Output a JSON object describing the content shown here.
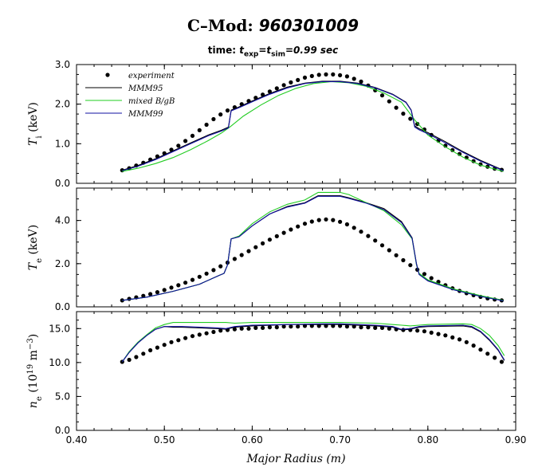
{
  "title": {
    "machine": "C–Mod:",
    "shot": "960301009"
  },
  "subtitle": {
    "prefix": "time:",
    "t": "t",
    "exp": "exp",
    "eq": "=",
    "sim": "sim",
    "value": "=0.99 sec"
  },
  "xlabel": "Major Radius (m)",
  "legend": [
    "experiment",
    "MMM95",
    "mixed B/gB",
    "MMM99"
  ],
  "colors": {
    "experiment": "#000000",
    "MMM95": "#000000",
    "mixed B/gB": "#22cc22",
    "MMM99": "#1010a0"
  },
  "chart_data": [
    {
      "type": "line",
      "ylabel": "T_i (keV)",
      "ylim": [
        0,
        3.0
      ],
      "yticks": [
        "0.0",
        "1.0",
        "2.0",
        "3.0"
      ],
      "xlim": [
        0.4,
        0.9
      ],
      "xticks": [
        "0.40",
        "0.50",
        "0.60",
        "0.70",
        "0.80",
        "0.90"
      ],
      "series": [
        {
          "name": "experiment",
          "style": "markers",
          "x": [
            0.452,
            0.46,
            0.468,
            0.476,
            0.484,
            0.492,
            0.5,
            0.508,
            0.516,
            0.524,
            0.532,
            0.54,
            0.548,
            0.556,
            0.564,
            0.572,
            0.58,
            0.588,
            0.596,
            0.604,
            0.612,
            0.62,
            0.628,
            0.636,
            0.644,
            0.652,
            0.66,
            0.668,
            0.676,
            0.684,
            0.692,
            0.7,
            0.708,
            0.716,
            0.724,
            0.732,
            0.74,
            0.748,
            0.756,
            0.764,
            0.772,
            0.78,
            0.788,
            0.796,
            0.804,
            0.812,
            0.82,
            0.828,
            0.836,
            0.844,
            0.852,
            0.86,
            0.868,
            0.876,
            0.884
          ],
          "y": [
            0.33,
            0.38,
            0.45,
            0.52,
            0.6,
            0.68,
            0.76,
            0.85,
            0.95,
            1.07,
            1.2,
            1.34,
            1.48,
            1.62,
            1.74,
            1.84,
            1.92,
            2.0,
            2.08,
            2.16,
            2.24,
            2.32,
            2.4,
            2.48,
            2.55,
            2.61,
            2.67,
            2.71,
            2.74,
            2.75,
            2.75,
            2.73,
            2.7,
            2.64,
            2.57,
            2.47,
            2.35,
            2.22,
            2.07,
            1.91,
            1.76,
            1.63,
            1.5,
            1.36,
            1.22,
            1.08,
            0.95,
            0.84,
            0.74,
            0.65,
            0.56,
            0.48,
            0.42,
            0.37,
            0.34
          ]
        },
        {
          "name": "MMM95",
          "style": "line",
          "x": [
            0.452,
            0.47,
            0.49,
            0.51,
            0.53,
            0.55,
            0.565,
            0.573,
            0.576,
            0.585,
            0.6,
            0.62,
            0.64,
            0.66,
            0.68,
            0.7,
            0.72,
            0.74,
            0.76,
            0.775,
            0.781,
            0.785,
            0.79,
            0.8,
            0.82,
            0.84,
            0.86,
            0.886
          ],
          "y": [
            0.33,
            0.45,
            0.62,
            0.82,
            1.02,
            1.22,
            1.34,
            1.42,
            1.85,
            1.93,
            2.08,
            2.27,
            2.43,
            2.53,
            2.58,
            2.58,
            2.53,
            2.42,
            2.25,
            2.05,
            1.85,
            1.45,
            1.38,
            1.28,
            1.05,
            0.8,
            0.58,
            0.33
          ]
        },
        {
          "name": "mixed B/gB",
          "style": "line",
          "x": [
            0.452,
            0.47,
            0.49,
            0.51,
            0.53,
            0.55,
            0.565,
            0.575,
            0.59,
            0.61,
            0.63,
            0.65,
            0.67,
            0.69,
            0.71,
            0.73,
            0.75,
            0.77,
            0.785,
            0.8,
            0.82,
            0.84,
            0.86,
            0.886
          ],
          "y": [
            0.3,
            0.38,
            0.5,
            0.65,
            0.85,
            1.08,
            1.27,
            1.43,
            1.7,
            1.98,
            2.22,
            2.4,
            2.52,
            2.57,
            2.54,
            2.45,
            2.28,
            2.05,
            1.6,
            1.22,
            0.92,
            0.66,
            0.46,
            0.3
          ]
        },
        {
          "name": "MMM99",
          "style": "line",
          "x": [
            0.452,
            0.47,
            0.49,
            0.51,
            0.53,
            0.55,
            0.565,
            0.573,
            0.576,
            0.585,
            0.6,
            0.62,
            0.64,
            0.66,
            0.68,
            0.7,
            0.72,
            0.74,
            0.76,
            0.775,
            0.781,
            0.785,
            0.79,
            0.8,
            0.82,
            0.84,
            0.86,
            0.886
          ],
          "y": [
            0.32,
            0.43,
            0.6,
            0.8,
            1.0,
            1.2,
            1.32,
            1.4,
            1.83,
            1.91,
            2.06,
            2.25,
            2.41,
            2.52,
            2.57,
            2.57,
            2.52,
            2.41,
            2.24,
            2.04,
            1.84,
            1.42,
            1.35,
            1.25,
            1.02,
            0.78,
            0.56,
            0.32
          ]
        }
      ]
    },
    {
      "type": "line",
      "ylabel": "T_e (keV)",
      "ylim": [
        0,
        5.5
      ],
      "yticks": [
        "0.0",
        "2.0",
        "4.0"
      ],
      "xlim": [
        0.4,
        0.9
      ],
      "xticks": [
        "0.40",
        "0.50",
        "0.60",
        "0.70",
        "0.80",
        "0.90"
      ],
      "series": [
        {
          "name": "experiment",
          "style": "markers",
          "x": [
            0.452,
            0.46,
            0.468,
            0.476,
            0.484,
            0.492,
            0.5,
            0.508,
            0.516,
            0.524,
            0.532,
            0.54,
            0.548,
            0.556,
            0.564,
            0.572,
            0.58,
            0.588,
            0.596,
            0.604,
            0.612,
            0.62,
            0.628,
            0.636,
            0.644,
            0.652,
            0.66,
            0.668,
            0.676,
            0.684,
            0.692,
            0.7,
            0.708,
            0.716,
            0.724,
            0.732,
            0.74,
            0.748,
            0.756,
            0.764,
            0.772,
            0.78,
            0.788,
            0.796,
            0.804,
            0.812,
            0.82,
            0.828,
            0.836,
            0.844,
            0.852,
            0.86,
            0.868,
            0.876,
            0.884
          ],
          "y": [
            0.3,
            0.37,
            0.44,
            0.51,
            0.59,
            0.68,
            0.78,
            0.89,
            1.0,
            1.12,
            1.25,
            1.39,
            1.54,
            1.7,
            1.88,
            2.05,
            2.22,
            2.4,
            2.58,
            2.76,
            2.94,
            3.11,
            3.27,
            3.43,
            3.58,
            3.72,
            3.85,
            3.95,
            4.02,
            4.05,
            4.02,
            3.94,
            3.82,
            3.66,
            3.48,
            3.28,
            3.07,
            2.85,
            2.62,
            2.39,
            2.16,
            1.93,
            1.72,
            1.52,
            1.33,
            1.16,
            1.0,
            0.86,
            0.74,
            0.63,
            0.54,
            0.46,
            0.39,
            0.34,
            0.3
          ]
        },
        {
          "name": "MMM95",
          "style": "line",
          "x": [
            0.452,
            0.48,
            0.51,
            0.54,
            0.562,
            0.568,
            0.572,
            0.576,
            0.585,
            0.6,
            0.62,
            0.64,
            0.66,
            0.675,
            0.7,
            0.71,
            0.73,
            0.75,
            0.77,
            0.782,
            0.787,
            0.79,
            0.8,
            0.83,
            0.86,
            0.886
          ],
          "y": [
            0.3,
            0.45,
            0.72,
            1.05,
            1.45,
            1.55,
            1.95,
            3.15,
            3.25,
            3.75,
            4.3,
            4.65,
            4.82,
            5.15,
            5.15,
            5.05,
            4.82,
            4.55,
            3.95,
            3.2,
            2.0,
            1.52,
            1.22,
            0.8,
            0.5,
            0.3
          ]
        },
        {
          "name": "mixed B/gB",
          "style": "line",
          "x": [
            0.452,
            0.48,
            0.51,
            0.54,
            0.562,
            0.568,
            0.572,
            0.576,
            0.585,
            0.6,
            0.62,
            0.64,
            0.66,
            0.675,
            0.7,
            0.71,
            0.73,
            0.75,
            0.77,
            0.782,
            0.787,
            0.79,
            0.8,
            0.83,
            0.86,
            0.886
          ],
          "y": [
            0.3,
            0.45,
            0.72,
            1.05,
            1.45,
            1.55,
            1.95,
            3.15,
            3.28,
            3.85,
            4.4,
            4.75,
            4.95,
            5.3,
            5.3,
            5.2,
            4.82,
            4.45,
            3.8,
            3.15,
            1.95,
            1.55,
            1.25,
            0.82,
            0.52,
            0.3
          ]
        },
        {
          "name": "MMM99",
          "style": "line",
          "x": [
            0.452,
            0.48,
            0.51,
            0.54,
            0.562,
            0.568,
            0.572,
            0.576,
            0.585,
            0.6,
            0.62,
            0.64,
            0.66,
            0.675,
            0.7,
            0.71,
            0.73,
            0.75,
            0.77,
            0.782,
            0.787,
            0.79,
            0.8,
            0.83,
            0.86,
            0.886
          ],
          "y": [
            0.3,
            0.45,
            0.72,
            1.05,
            1.45,
            1.55,
            1.95,
            3.15,
            3.25,
            3.75,
            4.3,
            4.62,
            4.8,
            5.12,
            5.12,
            5.02,
            4.8,
            4.5,
            3.9,
            3.18,
            1.98,
            1.5,
            1.2,
            0.78,
            0.48,
            0.28
          ]
        }
      ]
    },
    {
      "type": "line",
      "ylabel": "n_e (10^19 m^-3)",
      "ylim": [
        0,
        17.5
      ],
      "yticks": [
        "0.0",
        "5.0",
        "10.0",
        "15.0"
      ],
      "xlim": [
        0.4,
        0.9
      ],
      "xticks": [
        "0.40",
        "0.50",
        "0.60",
        "0.70",
        "0.80",
        "0.90"
      ],
      "series": [
        {
          "name": "experiment",
          "style": "markers",
          "x": [
            0.452,
            0.46,
            0.468,
            0.476,
            0.484,
            0.492,
            0.5,
            0.508,
            0.516,
            0.524,
            0.532,
            0.54,
            0.548,
            0.556,
            0.564,
            0.572,
            0.58,
            0.588,
            0.596,
            0.604,
            0.612,
            0.62,
            0.628,
            0.636,
            0.644,
            0.652,
            0.66,
            0.668,
            0.676,
            0.684,
            0.692,
            0.7,
            0.708,
            0.716,
            0.724,
            0.732,
            0.74,
            0.748,
            0.756,
            0.764,
            0.772,
            0.78,
            0.788,
            0.796,
            0.804,
            0.812,
            0.82,
            0.828,
            0.836,
            0.844,
            0.852,
            0.86,
            0.868,
            0.876,
            0.884
          ],
          "y": [
            10.1,
            10.4,
            10.8,
            11.3,
            11.8,
            12.2,
            12.6,
            13.0,
            13.3,
            13.6,
            13.9,
            14.1,
            14.3,
            14.5,
            14.7,
            14.8,
            14.9,
            15.0,
            15.0,
            15.1,
            15.1,
            15.2,
            15.2,
            15.3,
            15.3,
            15.3,
            15.4,
            15.4,
            15.4,
            15.4,
            15.4,
            15.4,
            15.3,
            15.3,
            15.2,
            15.2,
            15.1,
            15.1,
            15.0,
            14.9,
            14.8,
            14.8,
            14.7,
            14.6,
            14.4,
            14.2,
            14.0,
            13.7,
            13.4,
            13.0,
            12.5,
            11.9,
            11.3,
            10.7,
            10.1
          ]
        },
        {
          "name": "MMM95",
          "style": "line",
          "x": [
            0.452,
            0.46,
            0.47,
            0.48,
            0.49,
            0.5,
            0.51,
            0.52,
            0.56,
            0.57,
            0.58,
            0.6,
            0.64,
            0.68,
            0.7,
            0.74,
            0.76,
            0.77,
            0.78,
            0.79,
            0.8,
            0.84,
            0.85,
            0.86,
            0.87,
            0.88,
            0.887
          ],
          "y": [
            10.1,
            11.5,
            12.9,
            14.0,
            14.9,
            15.3,
            15.2,
            15.2,
            15.0,
            14.9,
            15.2,
            15.4,
            15.6,
            15.6,
            15.6,
            15.4,
            15.2,
            14.8,
            14.9,
            15.2,
            15.3,
            15.4,
            15.2,
            14.5,
            13.3,
            11.8,
            10.3
          ]
        },
        {
          "name": "mixed B/gB",
          "style": "line",
          "x": [
            0.452,
            0.46,
            0.47,
            0.48,
            0.49,
            0.5,
            0.51,
            0.52,
            0.56,
            0.57,
            0.58,
            0.6,
            0.64,
            0.68,
            0.7,
            0.74,
            0.76,
            0.77,
            0.78,
            0.79,
            0.8,
            0.84,
            0.85,
            0.86,
            0.87,
            0.88,
            0.887
          ],
          "y": [
            10.1,
            11.6,
            13.0,
            14.1,
            15.1,
            15.6,
            15.9,
            15.9,
            15.9,
            15.9,
            15.8,
            15.9,
            15.9,
            15.9,
            15.9,
            15.8,
            15.6,
            15.5,
            15.4,
            15.5,
            15.6,
            15.7,
            15.6,
            15.0,
            14.0,
            12.5,
            11.0
          ]
        },
        {
          "name": "MMM99",
          "style": "line",
          "x": [
            0.452,
            0.46,
            0.47,
            0.48,
            0.49,
            0.5,
            0.51,
            0.52,
            0.56,
            0.57,
            0.58,
            0.6,
            0.64,
            0.68,
            0.7,
            0.74,
            0.76,
            0.77,
            0.78,
            0.79,
            0.8,
            0.84,
            0.85,
            0.86,
            0.87,
            0.88,
            0.887
          ],
          "y": [
            10.1,
            11.5,
            12.9,
            14.0,
            14.9,
            15.3,
            15.3,
            15.3,
            15.1,
            15.0,
            15.3,
            15.5,
            15.6,
            15.7,
            15.7,
            15.5,
            15.3,
            14.9,
            15.0,
            15.3,
            15.4,
            15.5,
            15.3,
            14.6,
            13.4,
            11.9,
            10.4
          ]
        }
      ]
    }
  ]
}
